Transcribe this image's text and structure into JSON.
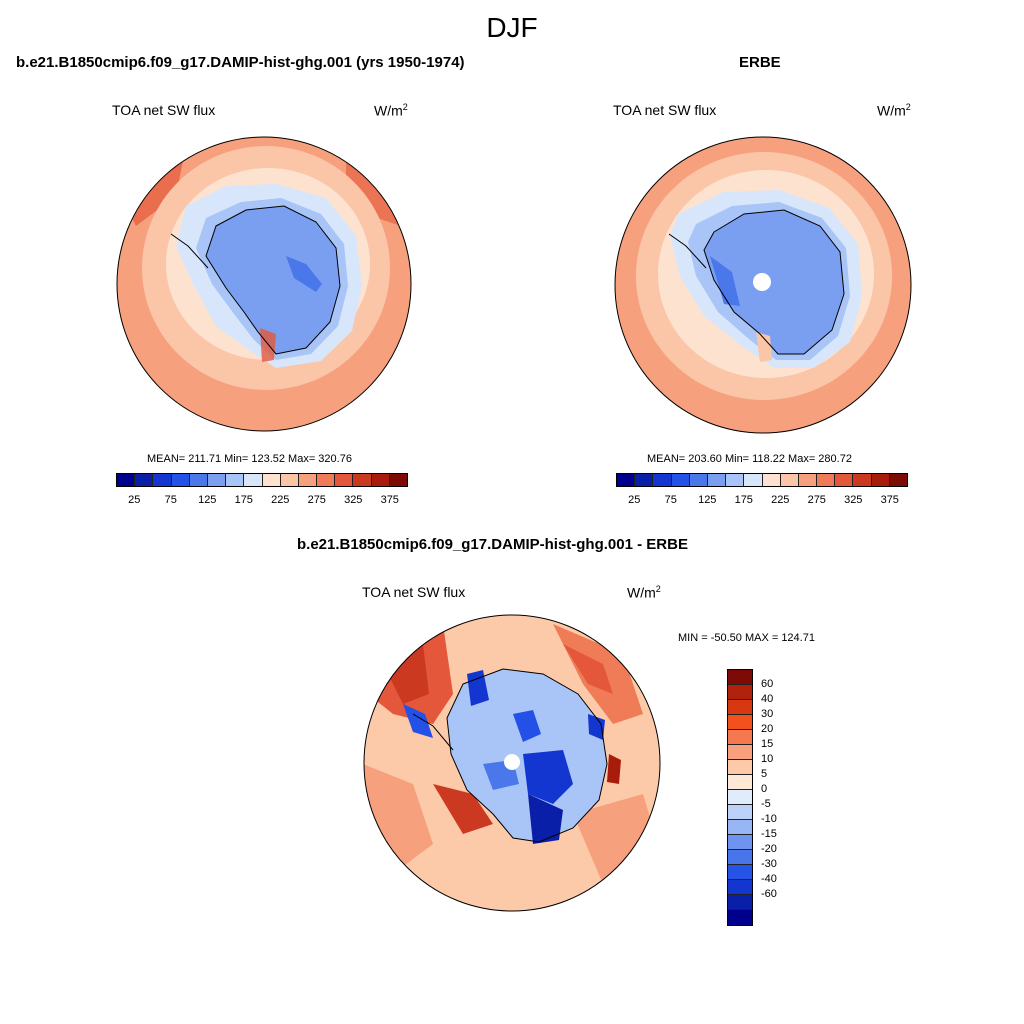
{
  "figure": {
    "title": "DJF"
  },
  "panels": [
    {
      "title": "b.e21.B1850cmip6.f09_g17.DAMIP-hist-ghg.001 (yrs 1950-1974)",
      "field_label": "TOA net SW flux",
      "units": "W/m",
      "units_exp": "2",
      "stats": "MEAN= 211.71  Min= 123.52  Max= 320.76"
    },
    {
      "title": "ERBE",
      "field_label": "TOA net SW flux",
      "units": "W/m",
      "units_exp": "2",
      "stats": "MEAN= 203.60  Min= 118.22  Max= 280.72"
    },
    {
      "title": "b.e21.B1850cmip6.f09_g17.DAMIP-hist-ghg.001 - ERBE",
      "field_label": "TOA net SW flux",
      "units": "W/m",
      "units_exp": "2",
      "stats": "MIN = -50.50 MAX = 124.71"
    }
  ],
  "colorbar_abs": {
    "colors": [
      "#00008c",
      "#0a1fa8",
      "#1336d0",
      "#2350e6",
      "#4a78ea",
      "#7b9ff0",
      "#a9c4f6",
      "#d7e6fb",
      "#fde2d0",
      "#fbc5a8",
      "#f6a07e",
      "#ef7b57",
      "#e5573a",
      "#cb3a20",
      "#a81c0c",
      "#7d0a04"
    ],
    "tick_labels": [
      "25",
      "75",
      "125",
      "175",
      "225",
      "275",
      "325",
      "375"
    ]
  },
  "colorbar_diff": {
    "colors": [
      "#7d0a04",
      "#b0220c",
      "#d7380f",
      "#f2501d",
      "#f67850",
      "#f9a07e",
      "#fccaa8",
      "#fee8d6",
      "#e0ecfb",
      "#bcd2f8",
      "#98b6f4",
      "#6f94ef",
      "#4875ea",
      "#2554e6",
      "#1336cf",
      "#0a1fa8",
      "#00008c"
    ],
    "tick_labels": [
      "60",
      "40",
      "30",
      "20",
      "15",
      "10",
      "5",
      "0",
      "-5",
      "-10",
      "-15",
      "-20",
      "-30",
      "-40",
      "-60"
    ]
  },
  "map_colors": {
    "ocean_outer": "#f6a07e",
    "ocean_mid": "#fbc5a8",
    "ocean_inner": "#fde2d0",
    "sea_ice": "#d7e6fb",
    "coast_ice": "#a9c4f6",
    "continent": "#7b9ff0",
    "continent_dark": "#4a78ea",
    "warm_hot": "#e5573a",
    "diff_background": "#fccaa8"
  }
}
